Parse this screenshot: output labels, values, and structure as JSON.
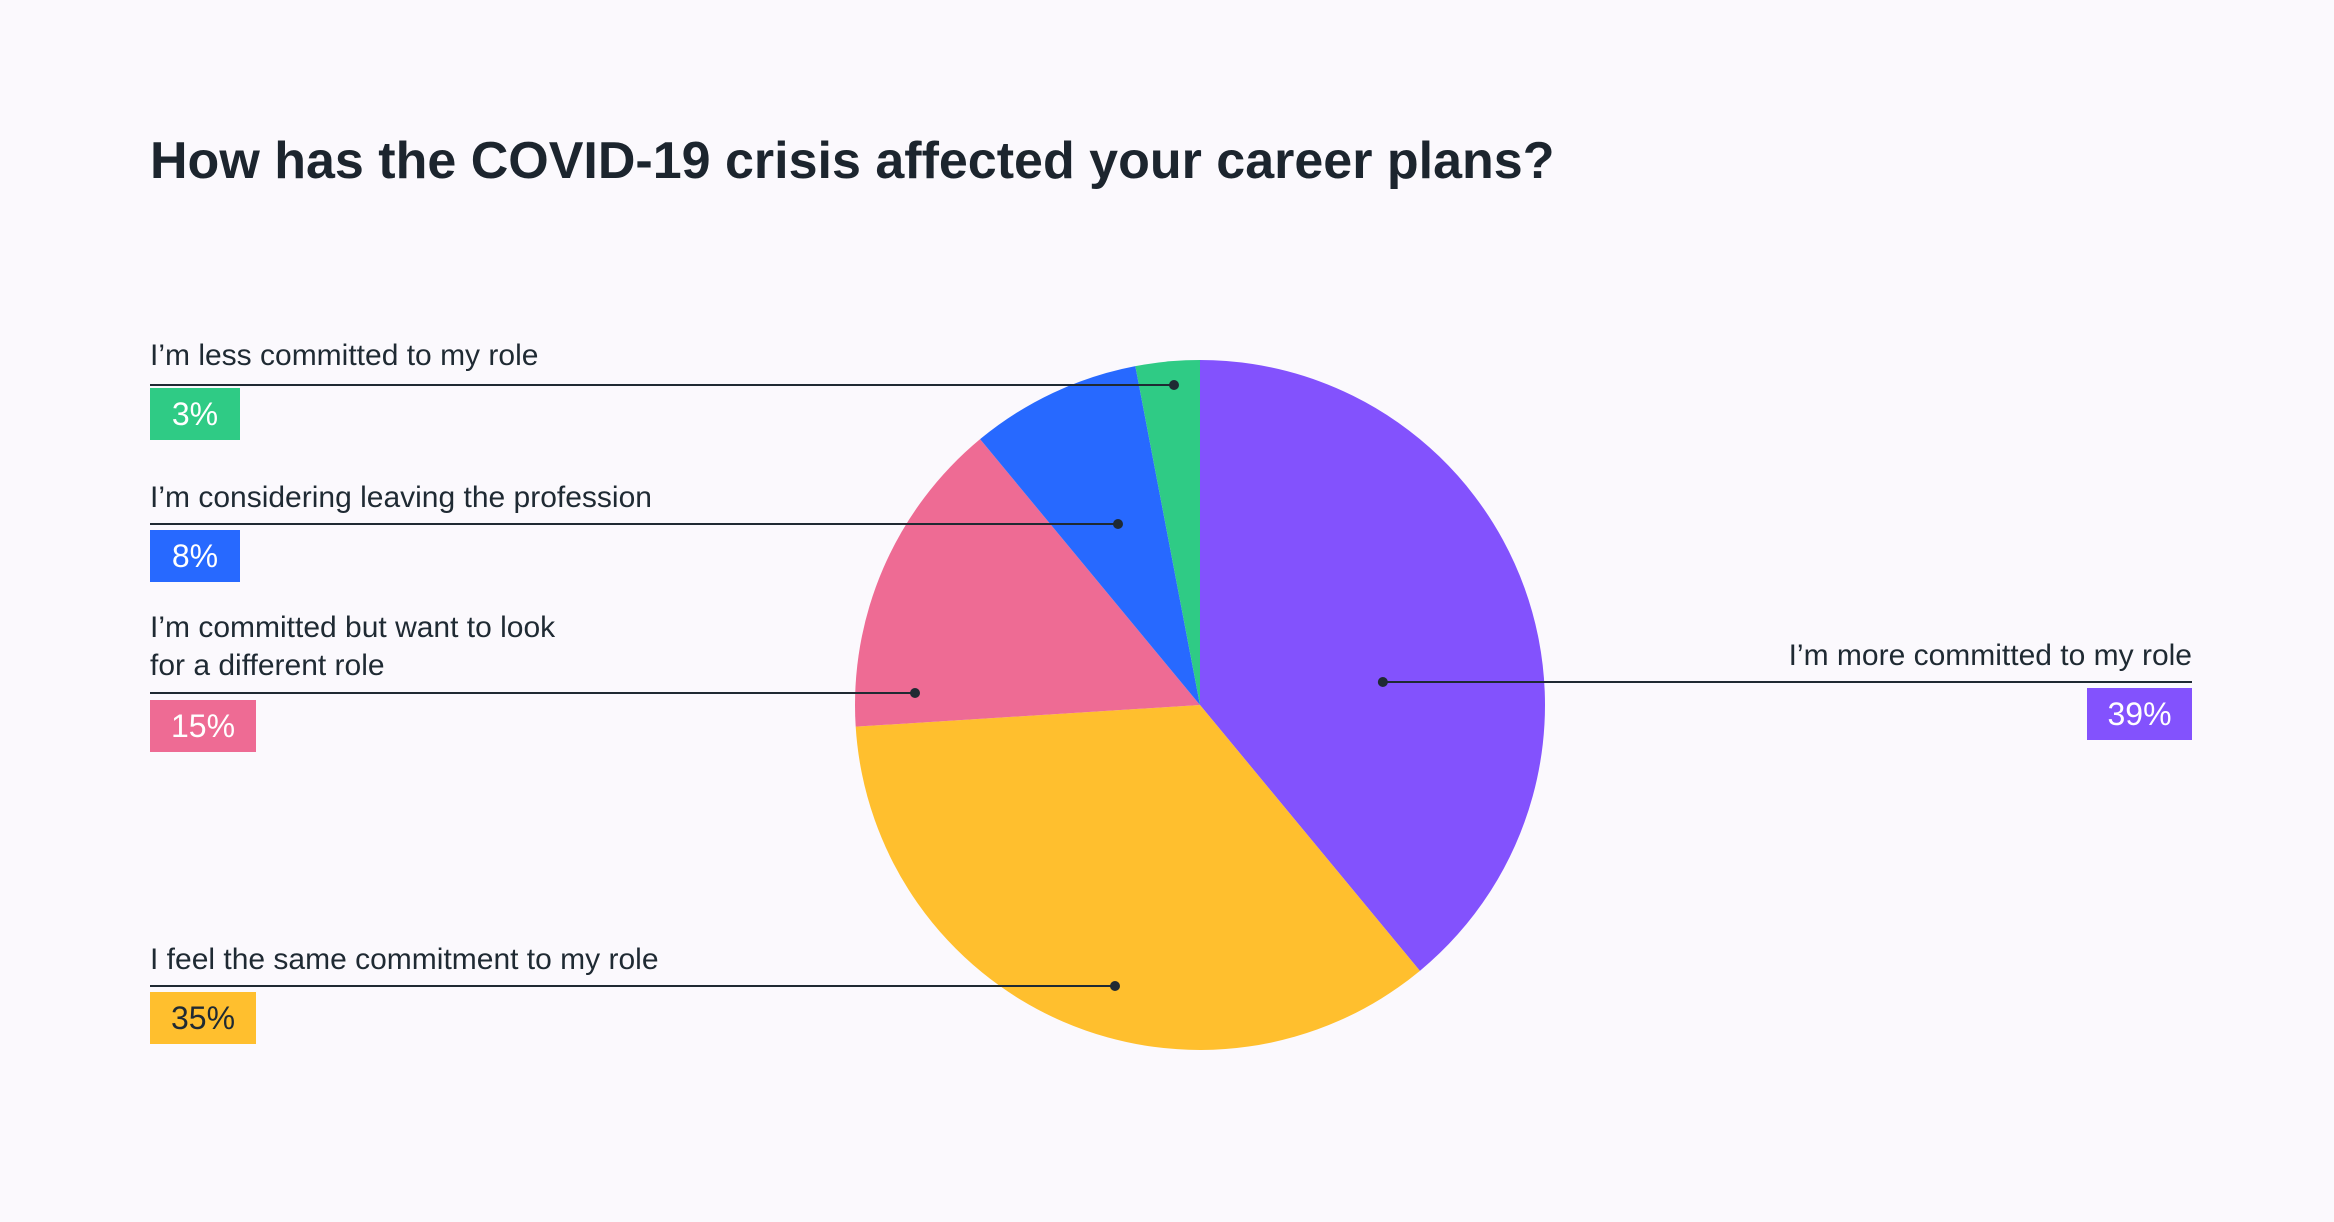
{
  "chart_data": {
    "type": "pie",
    "title": "How has the COVID-19 crisis affected your career plans?",
    "slices": [
      {
        "label": "I’m more committed to my role",
        "value": 39,
        "display": "39%",
        "color": "#8352fd",
        "text_color": "#ffffff"
      },
      {
        "label": "I feel the same commitment to my role",
        "value": 35,
        "display": "35%",
        "color": "#ffbf2e",
        "text_color": "#1f2a33"
      },
      {
        "label": "I’m committed but want to look for a different role",
        "label_lines": [
          "I’m committed but want to look",
          "for a different role"
        ],
        "value": 15,
        "display": "15%",
        "color": "#ee6b94",
        "text_color": "#ffffff"
      },
      {
        "label": "I’m considering leaving the profession",
        "value": 8,
        "display": "8%",
        "color": "#2769ff",
        "text_color": "#ffffff"
      },
      {
        "label": "I’m less committed to my role",
        "value": 3,
        "display": "3%",
        "color": "#2fcb85",
        "text_color": "#ffffff"
      }
    ],
    "start_angle": "12 o'clock",
    "direction": "clockwise",
    "legend": "none"
  }
}
